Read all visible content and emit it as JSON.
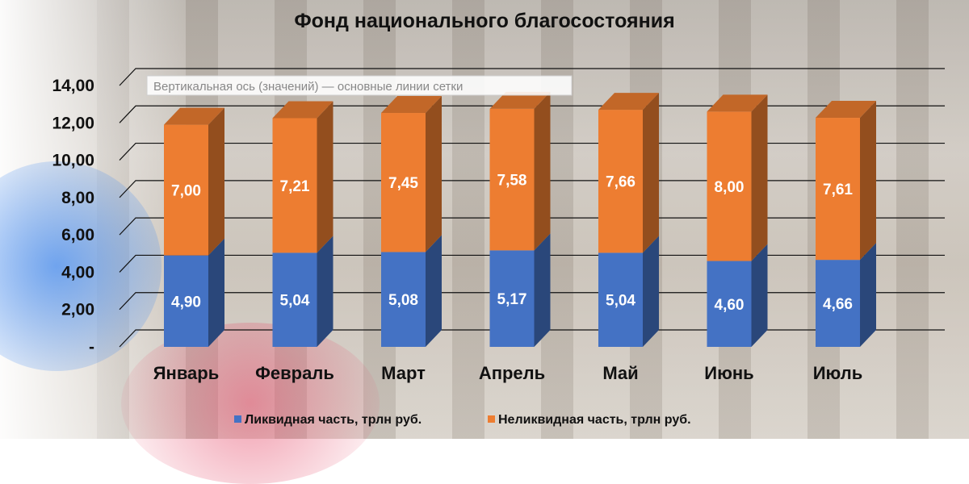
{
  "chart_data": {
    "type": "bar",
    "stacked": true,
    "title": "Фонд национального благосостояния",
    "categories": [
      "Январь",
      "Февраль",
      "Март",
      "Апрель",
      "Май",
      "Июнь",
      "Июль"
    ],
    "series": [
      {
        "name": "Ликвидная часть, трлн руб.",
        "values": [
          4.9,
          5.04,
          5.08,
          5.17,
          5.04,
          4.6,
          4.66
        ],
        "labels": [
          "4,90",
          "5,04",
          "5,08",
          "5,17",
          "5,04",
          "4,60",
          "4,66"
        ],
        "color": "#4472c4"
      },
      {
        "name": "Неликвидная часть, трлн руб.",
        "values": [
          7.0,
          7.21,
          7.45,
          7.58,
          7.66,
          8.0,
          7.61
        ],
        "labels": [
          "7,00",
          "7,21",
          "7,45",
          "7,58",
          "7,66",
          "8,00",
          "7,61"
        ],
        "color": "#ed7d31"
      }
    ],
    "yticks": [
      "-",
      "2,00",
      "4,00",
      "6,00",
      "8,00",
      "10,00",
      "12,00",
      "14,00"
    ],
    "ylim": [
      0,
      14
    ],
    "grid": true,
    "legend": "bottom",
    "tooltip": "Вертикальная ось (значений)   — основные линии сетки"
  }
}
